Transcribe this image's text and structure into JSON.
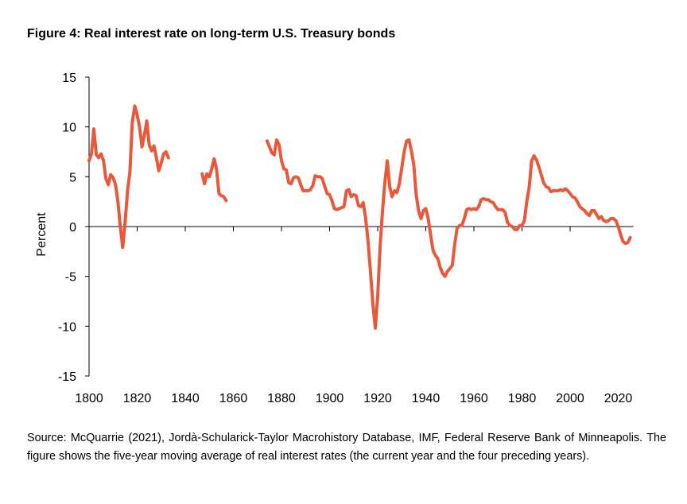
{
  "figure": {
    "title": "Figure 4: Real interest rate on long-term U.S. Treasury bonds",
    "note": "Source: McQuarrie (2021), Jordà-Schularick-Taylor Macrohistory Database, IMF, Federal Reserve Bank of Minneapolis. The figure shows the five-year moving average of real interest rates (the current year and the four preceding years)."
  },
  "chart_data": {
    "type": "line",
    "title": "Figure 4: Real interest rate on long-term U.S. Treasury bonds",
    "xlabel": "",
    "ylabel": "Percent",
    "xlim": [
      1800,
      2025
    ],
    "ylim": [
      -15,
      15
    ],
    "x_ticks": [
      "1800",
      "1820",
      "1840",
      "1860",
      "1880",
      "1900",
      "1920",
      "1940",
      "1960",
      "1980",
      "2000",
      "2020"
    ],
    "y_ticks": [
      "15",
      "10",
      "5",
      "0",
      "-5",
      "-10",
      "-15"
    ],
    "grid": false,
    "legend": "none",
    "color": "#E8593C",
    "series": [
      {
        "segments": [
          [
            [
              1800,
              6.6
            ],
            [
              1801,
              7.3
            ],
            [
              1802,
              9.8
            ],
            [
              1803,
              7.2
            ],
            [
              1804,
              6.9
            ],
            [
              1805,
              7.3
            ],
            [
              1806,
              6.6
            ],
            [
              1807,
              4.8
            ],
            [
              1808,
              4.2
            ],
            [
              1809,
              5.2
            ],
            [
              1810,
              4.9
            ],
            [
              1811,
              4.2
            ],
            [
              1812,
              2.5
            ],
            [
              1813,
              0.0
            ],
            [
              1814,
              -2.1
            ],
            [
              1815,
              0.5
            ],
            [
              1816,
              3.6
            ],
            [
              1817,
              5.5
            ],
            [
              1818,
              10.5
            ],
            [
              1819,
              12.1
            ],
            [
              1820,
              11.2
            ],
            [
              1821,
              10.0
            ],
            [
              1822,
              8.0
            ],
            [
              1823,
              9.2
            ],
            [
              1824,
              10.6
            ],
            [
              1825,
              8.2
            ],
            [
              1826,
              7.6
            ],
            [
              1827,
              8.1
            ],
            [
              1828,
              6.9
            ],
            [
              1829,
              5.6
            ],
            [
              1830,
              6.4
            ],
            [
              1831,
              7.3
            ],
            [
              1832,
              7.5
            ],
            [
              1833,
              6.9
            ]
          ],
          [
            [
              1847,
              5.3
            ],
            [
              1848,
              4.3
            ],
            [
              1849,
              5.3
            ],
            [
              1850,
              5.0
            ],
            [
              1851,
              5.8
            ],
            [
              1852,
              6.8
            ],
            [
              1853,
              5.8
            ],
            [
              1854,
              3.3
            ],
            [
              1855,
              3.1
            ],
            [
              1856,
              3.0
            ],
            [
              1857,
              2.6
            ]
          ],
          [
            [
              1874,
              8.6
            ],
            [
              1875,
              8.0
            ],
            [
              1876,
              7.4
            ],
            [
              1877,
              7.2
            ],
            [
              1878,
              8.7
            ],
            [
              1879,
              8.2
            ],
            [
              1880,
              6.6
            ],
            [
              1881,
              5.8
            ],
            [
              1882,
              5.7
            ],
            [
              1883,
              4.4
            ],
            [
              1884,
              4.3
            ],
            [
              1885,
              4.9
            ],
            [
              1886,
              5.0
            ],
            [
              1887,
              4.9
            ],
            [
              1888,
              4.2
            ],
            [
              1889,
              3.6
            ],
            [
              1890,
              3.6
            ],
            [
              1891,
              3.6
            ],
            [
              1892,
              3.7
            ],
            [
              1893,
              4.1
            ],
            [
              1894,
              5.1
            ],
            [
              1895,
              5.0
            ],
            [
              1896,
              5.0
            ],
            [
              1897,
              4.8
            ],
            [
              1898,
              4.0
            ],
            [
              1899,
              3.3
            ],
            [
              1900,
              3.2
            ],
            [
              1901,
              2.6
            ],
            [
              1902,
              1.8
            ],
            [
              1903,
              1.7
            ],
            [
              1904,
              1.8
            ],
            [
              1905,
              1.9
            ],
            [
              1906,
              2.0
            ],
            [
              1907,
              3.6
            ],
            [
              1908,
              3.7
            ],
            [
              1909,
              3.0
            ],
            [
              1910,
              3.2
            ],
            [
              1911,
              3.1
            ],
            [
              1912,
              2.1
            ],
            [
              1913,
              2.0
            ],
            [
              1914,
              2.4
            ],
            [
              1915,
              0.8
            ],
            [
              1916,
              -1.5
            ],
            [
              1917,
              -4.5
            ],
            [
              1918,
              -7.8
            ],
            [
              1919,
              -10.2
            ],
            [
              1920,
              -7.0
            ],
            [
              1921,
              -2.0
            ],
            [
              1922,
              1.5
            ],
            [
              1923,
              4.5
            ],
            [
              1924,
              6.6
            ],
            [
              1925,
              4.0
            ],
            [
              1926,
              3.0
            ],
            [
              1927,
              3.6
            ],
            [
              1928,
              3.4
            ],
            [
              1929,
              4.3
            ],
            [
              1930,
              5.9
            ],
            [
              1931,
              7.5
            ],
            [
              1932,
              8.6
            ],
            [
              1933,
              8.7
            ],
            [
              1934,
              7.6
            ],
            [
              1935,
              6.2
            ],
            [
              1936,
              3.2
            ],
            [
              1937,
              1.6
            ],
            [
              1938,
              0.8
            ],
            [
              1939,
              1.6
            ],
            [
              1940,
              1.8
            ],
            [
              1941,
              0.8
            ],
            [
              1942,
              -0.8
            ],
            [
              1943,
              -2.4
            ],
            [
              1944,
              -2.9
            ],
            [
              1945,
              -3.2
            ],
            [
              1946,
              -4.1
            ],
            [
              1947,
              -4.7
            ],
            [
              1948,
              -5.0
            ],
            [
              1949,
              -4.5
            ],
            [
              1950,
              -4.2
            ],
            [
              1951,
              -3.9
            ],
            [
              1952,
              -1.8
            ],
            [
              1953,
              -0.2
            ],
            [
              1954,
              0.1
            ],
            [
              1955,
              0.1
            ],
            [
              1956,
              0.8
            ],
            [
              1957,
              1.7
            ],
            [
              1958,
              1.8
            ],
            [
              1959,
              1.7
            ],
            [
              1960,
              1.8
            ],
            [
              1961,
              1.7
            ],
            [
              1962,
              2.0
            ],
            [
              1963,
              2.7
            ],
            [
              1964,
              2.8
            ],
            [
              1965,
              2.7
            ],
            [
              1966,
              2.7
            ],
            [
              1967,
              2.5
            ],
            [
              1968,
              2.4
            ],
            [
              1969,
              2.0
            ],
            [
              1970,
              1.7
            ],
            [
              1971,
              1.7
            ],
            [
              1972,
              1.7
            ],
            [
              1973,
              1.4
            ],
            [
              1974,
              0.4
            ],
            [
              1975,
              0.1
            ],
            [
              1976,
              0.0
            ],
            [
              1977,
              -0.3
            ],
            [
              1978,
              -0.3
            ],
            [
              1979,
              0.1
            ],
            [
              1980,
              0.1
            ],
            [
              1981,
              0.6
            ],
            [
              1982,
              2.5
            ],
            [
              1983,
              4.0
            ],
            [
              1984,
              6.6
            ],
            [
              1985,
              7.1
            ],
            [
              1986,
              6.7
            ],
            [
              1987,
              6.0
            ],
            [
              1988,
              5.2
            ],
            [
              1989,
              4.4
            ],
            [
              1990,
              4.0
            ],
            [
              1991,
              3.9
            ],
            [
              1992,
              3.5
            ],
            [
              1993,
              3.6
            ],
            [
              1994,
              3.6
            ],
            [
              1995,
              3.6
            ],
            [
              1996,
              3.7
            ],
            [
              1997,
              3.6
            ],
            [
              1998,
              3.8
            ],
            [
              1999,
              3.6
            ],
            [
              2000,
              3.3
            ],
            [
              2001,
              3.0
            ],
            [
              2002,
              2.9
            ],
            [
              2003,
              2.5
            ],
            [
              2004,
              2.0
            ],
            [
              2005,
              1.8
            ],
            [
              2006,
              1.6
            ],
            [
              2007,
              1.3
            ],
            [
              2008,
              1.1
            ],
            [
              2009,
              1.6
            ],
            [
              2010,
              1.6
            ],
            [
              2011,
              1.2
            ],
            [
              2012,
              0.8
            ],
            [
              2013,
              1.0
            ],
            [
              2014,
              0.6
            ],
            [
              2015,
              0.5
            ],
            [
              2016,
              0.6
            ],
            [
              2017,
              0.8
            ],
            [
              2018,
              0.8
            ],
            [
              2019,
              0.6
            ],
            [
              2020,
              0.0
            ],
            [
              2021,
              -0.8
            ],
            [
              2022,
              -1.5
            ],
            [
              2023,
              -1.7
            ],
            [
              2024,
              -1.6
            ],
            [
              2025,
              -1.1
            ]
          ]
        ]
      }
    ]
  }
}
